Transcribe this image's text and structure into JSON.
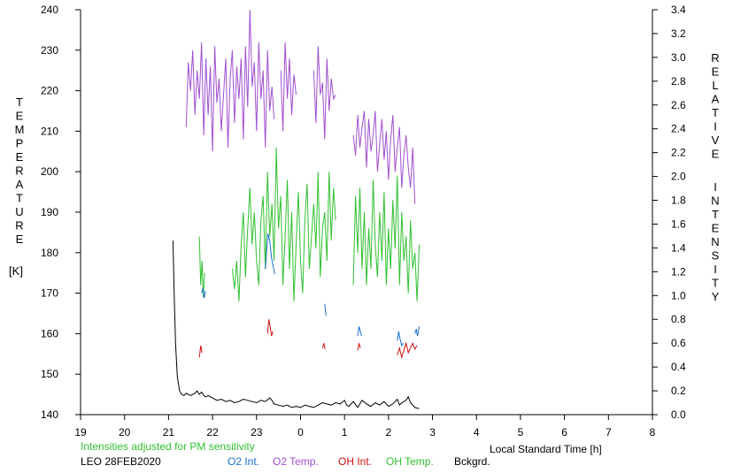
{
  "chart_data": {
    "type": "line",
    "left_axis": {
      "label_letters": [
        "T",
        "E",
        "M",
        "P",
        "E",
        "R",
        "A",
        "T",
        "U",
        "R",
        "E"
      ],
      "unit": "[K]",
      "ylim": [
        140,
        240
      ],
      "ticks": [
        140,
        150,
        160,
        170,
        180,
        190,
        200,
        210,
        220,
        230,
        240
      ]
    },
    "right_axis": {
      "label_word1": [
        "R",
        "E",
        "L",
        "A",
        "T",
        "I",
        "V",
        "E"
      ],
      "label_word2": [
        "I",
        "N",
        "T",
        "E",
        "N",
        "S",
        "I",
        "T",
        "Y"
      ],
      "ylim": [
        0.0,
        3.4
      ],
      "ticks": [
        "0.0",
        "0.2",
        "0.4",
        "0.6",
        "0.8",
        "1.0",
        "1.2",
        "1.4",
        "1.6",
        "1.8",
        "2.0",
        "2.2",
        "2.4",
        "2.6",
        "2.8",
        "3.0",
        "3.2",
        "3.4"
      ]
    },
    "x_axis": {
      "label": "Local Standard Time [h]",
      "xlim": [
        19,
        32
      ],
      "tick_labels": [
        "19",
        "20",
        "21",
        "22",
        "23",
        "0",
        "1",
        "2",
        "3",
        "4",
        "5",
        "6",
        "7",
        "8"
      ]
    },
    "note": "Intensities adjusted for PM sensitivity",
    "station": "LEO 28FEB2020",
    "legend": [
      {
        "name": "O2 Int.",
        "color": "#1a6fd0"
      },
      {
        "name": "O2 Temp.",
        "color": "#a050d0"
      },
      {
        "name": "OH Int.",
        "color": "#d01010"
      },
      {
        "name": "OH Temp.",
        "color": "#30c030"
      },
      {
        "name": "Bckgrd.",
        "color": "#000000"
      }
    ],
    "series": [
      {
        "name": "O2 Temp.",
        "axis": "left",
        "color": "#a050d0",
        "segments": [
          {
            "x": [
              21.4,
              21.45,
              21.5,
              21.55,
              21.6,
              21.65,
              21.7,
              21.75,
              21.8,
              21.85,
              21.9,
              21.95,
              22.0,
              22.05,
              22.1,
              22.15,
              22.2,
              22.25,
              22.3,
              22.35,
              22.4,
              22.45,
              22.5,
              22.55,
              22.6,
              22.65,
              22.7,
              22.75,
              22.8,
              22.85,
              22.9,
              22.95,
              23.0,
              23.05,
              23.1,
              23.15,
              23.2,
              23.25,
              23.3,
              23.35,
              23.4
            ],
            "y": [
              211,
              227,
              220,
              230,
              214,
              225,
              218,
              232,
              209,
              228,
              214,
              226,
              205,
              231,
              217,
              223,
              210,
              219,
              228,
              206,
              223,
              230,
              212,
              226,
              218,
              228,
              208,
              231,
              216,
              240,
              221,
              227,
              210,
              232,
              218,
              225,
              206,
              230,
              215,
              221,
              213
            ]
          },
          {
            "x": [
              23.55,
              23.6,
              23.65,
              23.7,
              23.75,
              23.8,
              23.85,
              23.9
            ],
            "y": [
              225,
              210,
              232,
              218,
              228,
              214,
              224,
              219
            ]
          },
          {
            "x": [
              24.3,
              24.35,
              24.4,
              24.45,
              24.5,
              24.55,
              24.6,
              24.65,
              24.7,
              24.75,
              24.8
            ],
            "y": [
              225,
              212,
              231,
              219,
              222,
              208,
              228,
              215,
              223,
              218,
              219
            ]
          },
          {
            "x": [
              25.2,
              25.25,
              25.3,
              25.35,
              25.4,
              25.45,
              25.5,
              25.55,
              25.6,
              25.65,
              25.7,
              25.75,
              25.8,
              25.85,
              25.9,
              25.95,
              26.0,
              26.05,
              26.1,
              26.15,
              26.2,
              26.25,
              26.3,
              26.35,
              26.4,
              26.45,
              26.5,
              26.55,
              26.6
            ],
            "y": [
              209,
              204,
              214,
              206,
              211,
              215,
              201,
              213,
              205,
              209,
              215,
              200,
              207,
              213,
              203,
              210,
              198,
              208,
              214,
              200,
              206,
              211,
              196,
              204,
              209,
              201,
              196,
              206,
              192
            ]
          }
        ]
      },
      {
        "name": "OH Temp.",
        "axis": "left",
        "color": "#30c030",
        "segments": [
          {
            "x": [
              21.7,
              21.73,
              21.76,
              21.79,
              21.82
            ],
            "y": [
              184,
              172,
              178,
              169,
              175
            ]
          },
          {
            "x": [
              22.45,
              22.5,
              22.55,
              22.6,
              22.65,
              22.7,
              22.75,
              22.8,
              22.85,
              22.9,
              22.95,
              23.0,
              23.05,
              23.1,
              23.15,
              23.2,
              23.25,
              23.3,
              23.35,
              23.4,
              23.45,
              23.5,
              23.55,
              23.6,
              23.65,
              23.7,
              23.75,
              23.8,
              23.85,
              23.9,
              23.95,
              24.0,
              24.05,
              24.1,
              24.15,
              24.2,
              24.25,
              24.3,
              24.35,
              24.4,
              24.45,
              24.5,
              24.55,
              24.6,
              24.65,
              24.7,
              24.75,
              24.8
            ],
            "y": [
              176,
              171,
              178,
              168,
              182,
              190,
              174,
              186,
              196,
              182,
              190,
              178,
              172,
              188,
              194,
              176,
              200,
              184,
              192,
              178,
              206,
              186,
              194,
              172,
              184,
              198,
              176,
              190,
              168,
              182,
              195,
              178,
              170,
              188,
              197,
              176,
              184,
              192,
              181,
              200,
              174,
              186,
              190,
              178,
              200,
              183,
              196,
              188
            ]
          },
          {
            "x": [
              25.2,
              25.25,
              25.3,
              25.35,
              25.4,
              25.45,
              25.5,
              25.55,
              25.6,
              25.65,
              25.7,
              25.75,
              25.8,
              25.85,
              25.9,
              25.95,
              26.0,
              26.05,
              26.1,
              26.15,
              26.2,
              26.25,
              26.3,
              26.35,
              26.4,
              26.45,
              26.5,
              26.55,
              26.6,
              26.65,
              26.7
            ],
            "y": [
              172,
              194,
              180,
              196,
              176,
              190,
              172,
              186,
              176,
              198,
              182,
              174,
              190,
              178,
              195,
              172,
              186,
              176,
              193,
              181,
              199,
              172,
              190,
              178,
              184,
              170,
              188,
              176,
              180,
              168,
              182
            ]
          }
        ]
      },
      {
        "name": "O2 Int.",
        "axis": "right",
        "color": "#1a6fd0",
        "segments": [
          {
            "x": [
              21.75,
              21.78,
              21.81,
              21.84
            ],
            "y": [
              1.02,
              1.06,
              0.98,
              1.04
            ]
          },
          {
            "x": [
              23.2,
              23.23,
              23.26,
              23.3,
              23.34,
              23.38,
              23.42
            ],
            "y": [
              1.22,
              1.38,
              1.52,
              1.46,
              1.32,
              1.24,
              1.18
            ]
          },
          {
            "x": [
              24.55,
              24.58
            ],
            "y": [
              0.93,
              0.83
            ]
          },
          {
            "x": [
              25.3,
              25.33,
              25.36,
              25.39
            ],
            "y": [
              0.66,
              0.74,
              0.7,
              0.66
            ]
          },
          {
            "x": [
              26.2,
              26.23,
              26.26,
              26.3,
              26.34
            ],
            "y": [
              0.62,
              0.7,
              0.64,
              0.58,
              0.6
            ]
          },
          {
            "x": [
              26.6,
              26.63,
              26.66,
              26.7
            ],
            "y": [
              0.68,
              0.72,
              0.66,
              0.74
            ]
          }
        ]
      },
      {
        "name": "OH Int.",
        "axis": "right",
        "color": "#d01010",
        "segments": [
          {
            "x": [
              21.7,
              21.73,
              21.76
            ],
            "y": [
              0.48,
              0.58,
              0.52
            ]
          },
          {
            "x": [
              23.25,
              23.28,
              23.31,
              23.34,
              23.37
            ],
            "y": [
              0.68,
              0.8,
              0.74,
              0.66,
              0.7
            ]
          },
          {
            "x": [
              24.5,
              24.53,
              24.56
            ],
            "y": [
              0.56,
              0.6,
              0.55
            ]
          },
          {
            "x": [
              25.3,
              25.33,
              25.36
            ],
            "y": [
              0.54,
              0.6,
              0.56
            ]
          },
          {
            "x": [
              26.2,
              26.25,
              26.3,
              26.35,
              26.4,
              26.45,
              26.5,
              26.55,
              26.6,
              26.65
            ],
            "y": [
              0.5,
              0.56,
              0.48,
              0.54,
              0.6,
              0.52,
              0.56,
              0.6,
              0.55,
              0.58
            ]
          }
        ]
      },
      {
        "name": "Bckgrd.",
        "axis": "right",
        "color": "#000000",
        "segments": [
          {
            "x": [
              21.1,
              21.13,
              21.16,
              21.2,
              21.25,
              21.3,
              21.35,
              21.4,
              21.5,
              21.6,
              21.65,
              21.7,
              21.75,
              21.8,
              21.85,
              21.9,
              22.0,
              22.1,
              22.2,
              22.3,
              22.4,
              22.5,
              22.6,
              22.7,
              22.8,
              22.9,
              23.0,
              23.1,
              23.2,
              23.3,
              23.35,
              23.4,
              23.5,
              23.6,
              23.7,
              23.8,
              23.9,
              24.0,
              24.1,
              24.2,
              24.3,
              24.4,
              24.5,
              24.6,
              24.7,
              24.8,
              24.9,
              25.0,
              25.05,
              25.1,
              25.2,
              25.3,
              25.4,
              25.5,
              25.6,
              25.7,
              25.8,
              25.9,
              26.0,
              26.1,
              26.2,
              26.25,
              26.3,
              26.4,
              26.45,
              26.5,
              26.6,
              26.7
            ],
            "y": [
              1.46,
              1.0,
              0.6,
              0.32,
              0.2,
              0.17,
              0.16,
              0.18,
              0.16,
              0.18,
              0.2,
              0.17,
              0.19,
              0.16,
              0.15,
              0.16,
              0.14,
              0.12,
              0.13,
              0.11,
              0.12,
              0.1,
              0.11,
              0.13,
              0.12,
              0.11,
              0.1,
              0.12,
              0.11,
              0.14,
              0.12,
              0.09,
              0.08,
              0.07,
              0.08,
              0.06,
              0.07,
              0.06,
              0.08,
              0.07,
              0.06,
              0.08,
              0.1,
              0.09,
              0.08,
              0.1,
              0.09,
              0.12,
              0.08,
              0.07,
              0.11,
              0.06,
              0.12,
              0.09,
              0.07,
              0.1,
              0.08,
              0.11,
              0.07,
              0.09,
              0.13,
              0.08,
              0.1,
              0.12,
              0.15,
              0.1,
              0.06,
              0.05
            ]
          }
        ]
      }
    ]
  }
}
